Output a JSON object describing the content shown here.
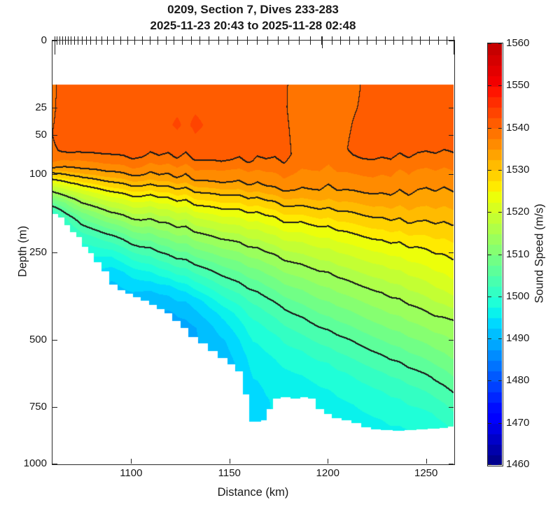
{
  "title": {
    "line1": "0209, Section 7, Dives 233-283",
    "line2": "2025-11-23 20:43 to 2025-11-28 02:48"
  },
  "axes": {
    "x": {
      "label": "Distance (km)",
      "range_km": [
        1060,
        1264
      ],
      "ticks": [
        1100,
        1150,
        1200,
        1250
      ]
    },
    "y": {
      "label": "Depth (m)",
      "range_m": [
        0,
        1000
      ],
      "scale": "sqrt",
      "ticks": [
        0,
        25,
        50,
        100,
        250,
        500,
        750,
        1000
      ]
    }
  },
  "colorbar": {
    "label": "Sound Speed (m/s)",
    "min": 1460,
    "max": 1560,
    "band_step": 2.5,
    "ticks": [
      1460,
      1470,
      1480,
      1490,
      1500,
      1510,
      1520,
      1530,
      1540,
      1550,
      1560
    ],
    "colormap": "jet"
  },
  "style": {
    "axis_color": "#2a2a2a",
    "tick_color": "#222222",
    "text_color": "#191919",
    "contour_line_color": "#1a1a1a"
  },
  "chart_data": {
    "type": "filled_contour",
    "title": "0209, Section 7, Dives 233-283",
    "subtitle": "2025-11-23 20:43 to 2025-11-28 02:48",
    "xlabel": "Distance (km)",
    "ylabel": "Depth (m)",
    "zlabel": "Sound Speed (m/s)",
    "x_range_km": [
      1060,
      1264
    ],
    "depth_range_m": [
      0,
      1000
    ],
    "c_range": [
      1460,
      1560
    ],
    "fill_step": 2.5,
    "contour_line_levels": [
      1505,
      1515,
      1525,
      1530,
      1535,
      1540
    ],
    "top_gap_m": 11,
    "profiles": [
      {
        "km": 1060,
        "z": [
          10,
          50,
          70,
          85,
          90,
          97,
          107,
          118,
          127,
          138,
          152,
          166,
          200
        ],
        "c": [
          1539.3,
          1539.5,
          1538.5,
          1536.3,
          1535,
          1530,
          1525,
          1519,
          1515,
          1509.5,
          1505,
          1499.5,
          1497
        ]
      },
      {
        "km": 1066,
        "z": [
          10,
          55,
          68,
          78,
          88,
          99,
          110,
          122,
          133,
          147,
          163,
          180,
          210
        ],
        "c": [
          1540.9,
          1541.2,
          1540,
          1537,
          1535,
          1530,
          1525,
          1519.5,
          1515,
          1509,
          1505,
          1500.5,
          1497.5
        ]
      },
      {
        "km": 1075,
        "z": [
          10,
          58,
          70,
          80,
          92,
          105,
          118,
          132,
          148,
          168,
          190,
          215,
          245,
          280
        ],
        "c": [
          1541.8,
          1541.6,
          1540,
          1537.5,
          1535,
          1530,
          1525,
          1519.5,
          1515,
          1509,
          1505,
          1501,
          1498.5,
          1496
        ]
      },
      {
        "km": 1090,
        "z": [
          10,
          60,
          72,
          84,
          96,
          112,
          128,
          146,
          165,
          190,
          220,
          260,
          300,
          330
        ],
        "c": [
          1541.8,
          1541.6,
          1540,
          1537.5,
          1535,
          1530,
          1525,
          1519.5,
          1515,
          1509,
          1503.5,
          1497.5,
          1493.5,
          1492
        ]
      },
      {
        "km": 1105,
        "z": [
          10,
          62,
          74,
          86,
          100,
          117,
          134,
          155,
          178,
          210,
          250,
          300,
          360,
          400
        ],
        "c": [
          1541.9,
          1541.6,
          1540,
          1537.5,
          1535,
          1530,
          1525,
          1519.5,
          1515,
          1509,
          1503,
          1496.5,
          1491.5,
          1489.8
        ]
      },
      {
        "km": 1120,
        "z": [
          10,
          40,
          64,
          76,
          89,
          104,
          122,
          142,
          165,
          195,
          235,
          285,
          345,
          420,
          450
        ],
        "c": [
          1541.9,
          1542.6,
          1541.4,
          1540,
          1537.3,
          1535,
          1530,
          1525,
          1519.5,
          1514.5,
          1508.5,
          1502,
          1494,
          1489.5,
          1489
        ]
      },
      {
        "km": 1133,
        "z": [
          10,
          40,
          66,
          78,
          92,
          108,
          127,
          150,
          175,
          210,
          255,
          310,
          380,
          460,
          510
        ],
        "c": [
          1541.8,
          1542.6,
          1541.3,
          1540,
          1537.2,
          1535,
          1530,
          1525,
          1519.5,
          1514,
          1508,
          1501.5,
          1493.5,
          1489.8,
          1489.5
        ]
      },
      {
        "km": 1148,
        "z": [
          10,
          68,
          80,
          95,
          112,
          133,
          158,
          186,
          225,
          275,
          340,
          415,
          500,
          580,
          600
        ],
        "c": [
          1541.7,
          1541.2,
          1540,
          1537,
          1535,
          1530,
          1525,
          1520,
          1514.5,
          1508.5,
          1502.5,
          1496,
          1492.5,
          1491,
          1490.8
        ]
      },
      {
        "km": 1162,
        "z": [
          10,
          70,
          83,
          98,
          117,
          140,
          167,
          200,
          245,
          300,
          370,
          455,
          560,
          680,
          815
        ],
        "c": [
          1541.4,
          1541,
          1540,
          1537,
          1535,
          1530,
          1525,
          1520,
          1514.5,
          1509,
          1503.5,
          1499,
          1496,
          1494.5,
          1493.8
        ]
      },
      {
        "km": 1174,
        "z": [
          10,
          72,
          85,
          101,
          121,
          146,
          175,
          212,
          260,
          322,
          400,
          495,
          610,
          720
        ],
        "c": [
          1540.6,
          1540.3,
          1539.2,
          1537,
          1535,
          1530,
          1525,
          1520,
          1514.8,
          1509.5,
          1504,
          1499.5,
          1496.5,
          1495.3
        ]
      },
      {
        "km": 1186,
        "z": [
          10,
          74,
          87,
          104,
          126,
          153,
          185,
          226,
          280,
          348,
          435,
          540,
          660,
          715
        ],
        "c": [
          1539.1,
          1538.9,
          1538,
          1536.5,
          1534.7,
          1530,
          1525,
          1520,
          1515,
          1509.8,
          1504.5,
          1499.8,
          1496.5,
          1495.8
        ]
      },
      {
        "km": 1199,
        "z": [
          10,
          75,
          88,
          106,
          130,
          160,
          196,
          242,
          302,
          380,
          472,
          580,
          700,
          770
        ],
        "c": [
          1538.8,
          1538.6,
          1537.8,
          1536.3,
          1534.4,
          1530,
          1525,
          1520,
          1515,
          1510,
          1504.8,
          1500,
          1497,
          1496
        ]
      },
      {
        "km": 1213,
        "z": [
          10,
          66,
          78,
          97,
          125,
          163,
          202,
          252,
          318,
          400,
          500,
          615,
          740,
          806
        ],
        "c": [
          1539.7,
          1540.1,
          1539.4,
          1537.3,
          1534.8,
          1530,
          1525.4,
          1520.5,
          1515.5,
          1510.5,
          1505.2,
          1500.3,
          1497.4,
          1496.4
        ]
      },
      {
        "km": 1228,
        "z": [
          10,
          64,
          74,
          96,
          128,
          172,
          215,
          272,
          345,
          435,
          540,
          660,
          790,
          848
        ],
        "c": [
          1540.5,
          1540.7,
          1539.9,
          1537.4,
          1534.9,
          1530,
          1525.5,
          1520.5,
          1515.5,
          1510.8,
          1505.5,
          1500.5,
          1497.6,
          1496.8
        ]
      },
      {
        "km": 1242,
        "z": [
          10,
          66,
          74,
          96,
          131,
          186,
          228,
          295,
          375,
          470,
          580,
          700,
          820,
          850
        ],
        "c": [
          1540.8,
          1540.9,
          1540.1,
          1537.5,
          1535,
          1530,
          1525.8,
          1520.8,
          1515.8,
          1511,
          1505.8,
          1501,
          1498.2,
          1497.4
        ]
      },
      {
        "km": 1253,
        "z": [
          10,
          66,
          73,
          97,
          133,
          192,
          240,
          320,
          405,
          505,
          620,
          745,
          845
        ],
        "c": [
          1540.9,
          1541,
          1540.2,
          1537.6,
          1535,
          1530,
          1526,
          1521,
          1516,
          1511,
          1505.8,
          1501,
          1498.2
        ]
      },
      {
        "km": 1264,
        "z": [
          10,
          65,
          73,
          99,
          135,
          198,
          255,
          345,
          441,
          560,
          697,
          830
        ],
        "c": [
          1540.8,
          1540.9,
          1540.2,
          1537.6,
          1535,
          1530,
          1526,
          1521.5,
          1515,
          1510.5,
          1505,
          1500.8
        ]
      }
    ],
    "bottom_steps_km_depth": [
      [
        1060,
        168
      ],
      [
        1063,
        175
      ],
      [
        1066,
        190
      ],
      [
        1069,
        205
      ],
      [
        1072,
        215
      ],
      [
        1075,
        238
      ],
      [
        1078,
        252
      ],
      [
        1081,
        275
      ],
      [
        1085,
        298
      ],
      [
        1089,
        332
      ],
      [
        1093,
        348
      ],
      [
        1097,
        358
      ],
      [
        1101,
        368
      ],
      [
        1105,
        378
      ],
      [
        1109,
        390
      ],
      [
        1113,
        402
      ],
      [
        1117,
        415
      ],
      [
        1121,
        440
      ],
      [
        1125,
        462
      ],
      [
        1129,
        492
      ],
      [
        1134,
        512
      ],
      [
        1139,
        538
      ],
      [
        1144,
        562
      ],
      [
        1149,
        585
      ],
      [
        1153,
        612
      ],
      [
        1157,
        700
      ],
      [
        1160,
        812
      ],
      [
        1166,
        806
      ],
      [
        1169,
        760
      ],
      [
        1172,
        715
      ],
      [
        1176,
        710
      ],
      [
        1181,
        716
      ],
      [
        1186,
        710
      ],
      [
        1190,
        716
      ],
      [
        1194,
        760
      ],
      [
        1198,
        780
      ],
      [
        1202,
        798
      ],
      [
        1207,
        806
      ],
      [
        1212,
        818
      ],
      [
        1217,
        834
      ],
      [
        1222,
        845
      ],
      [
        1227,
        848
      ],
      [
        1233,
        850
      ],
      [
        1239,
        848
      ],
      [
        1245,
        846
      ],
      [
        1251,
        843
      ],
      [
        1257,
        838
      ],
      [
        1261,
        832
      ]
    ],
    "dive_tick_km": [
      1061,
      1062.3,
      1063.6,
      1065,
      1066.4,
      1067.8,
      1069.3,
      1071,
      1072.8,
      1074.8,
      1077,
      1079.4,
      1082,
      1084.8,
      1087.8,
      1091,
      1094.4,
      1098,
      1101.7,
      1105.5,
      1109.4,
      1113.4,
      1117.5,
      1121.7,
      1126,
      1130.4,
      1134.9,
      1139.5,
      1144.2,
      1149,
      1153.9,
      1158.9,
      1164,
      1169.2,
      1174.5,
      1179.9,
      1185.4,
      1191,
      1196.7,
      1202,
      1206.5,
      1211,
      1215.5,
      1220,
      1224.5,
      1229,
      1233.5,
      1238,
      1242.5,
      1247,
      1251.5,
      1256,
      1260.5,
      1264
    ],
    "long_tick_km": [
      1061,
      1264
    ],
    "medium_tick_km": [
      1197
    ]
  }
}
